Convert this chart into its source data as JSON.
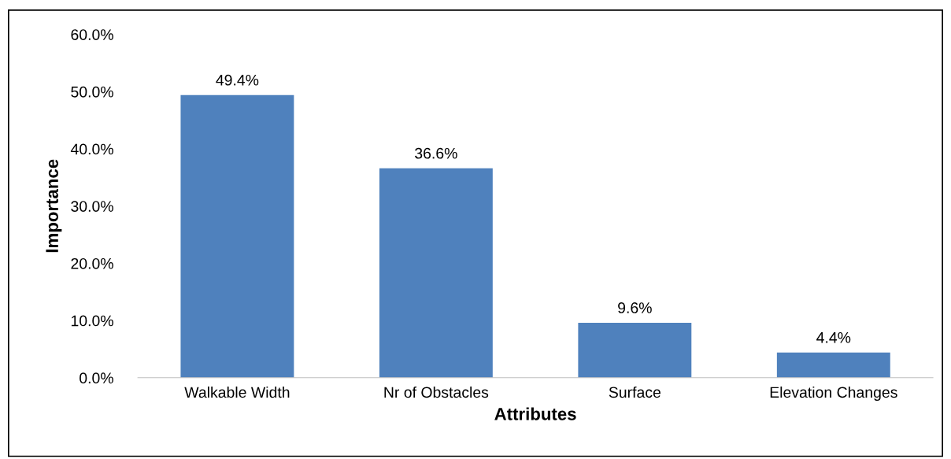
{
  "chart_data": {
    "type": "bar",
    "xlabel": "Attributes",
    "ylabel": "Importance",
    "categories": [
      "Walkable Width",
      "Nr of Obstacles",
      "Surface",
      "Elevation Changes"
    ],
    "values": [
      49.4,
      36.6,
      9.6,
      4.4
    ],
    "value_labels": [
      "49.4%",
      "36.6%",
      "9.6%",
      "4.4%"
    ],
    "color": "#4f81bd",
    "ylim": [
      0,
      60
    ],
    "yticks": [
      {
        "value": 0,
        "label": "0.0%"
      },
      {
        "value": 10,
        "label": "10.0%"
      },
      {
        "value": 20,
        "label": "20.0%"
      },
      {
        "value": 30,
        "label": "30.0%"
      },
      {
        "value": 40,
        "label": "40.0%"
      },
      {
        "value": 50,
        "label": "50.0%"
      },
      {
        "value": 60,
        "label": "60.0%"
      }
    ],
    "grid": false,
    "legend": false
  }
}
